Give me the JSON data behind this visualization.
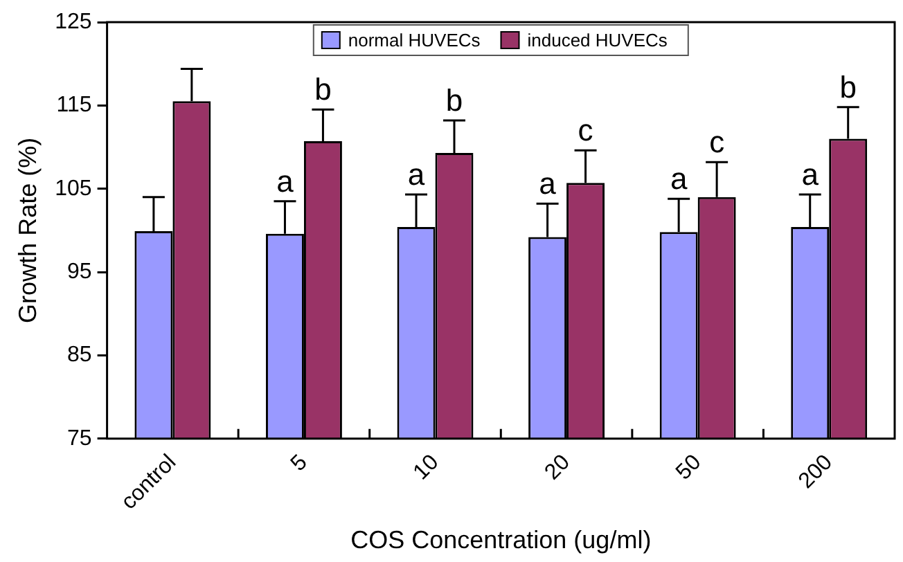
{
  "chart_data": {
    "type": "bar",
    "xlabel": "COS Concentration (ug/ml)",
    "ylabel": "Growth Rate (%)",
    "categories": [
      "control",
      "5",
      "10",
      "20",
      "50",
      "200"
    ],
    "series": [
      {
        "name": "normal HUVECs",
        "color": "#9999ff",
        "values": [
          99.9,
          99.6,
          100.4,
          99.2,
          99.8,
          100.4
        ],
        "errors": [
          [
            99.9,
            104.0
          ],
          [
            99.6,
            103.5
          ],
          [
            100.4,
            104.3
          ],
          [
            99.2,
            103.2
          ],
          [
            99.8,
            103.8
          ],
          [
            100.4,
            104.3
          ]
        ]
      },
      {
        "name": "induced HUVECs",
        "color": "#993366",
        "values": [
          115.5,
          110.7,
          109.3,
          105.7,
          104.0,
          111.0
        ],
        "errors": [
          [
            115.5,
            119.4
          ],
          [
            110.7,
            114.5
          ],
          [
            109.3,
            113.2
          ],
          [
            105.7,
            109.6
          ],
          [
            104.0,
            108.2
          ],
          [
            111.0,
            114.8
          ]
        ]
      }
    ],
    "ylim": [
      75,
      125
    ],
    "yticks": [
      75,
      85,
      95,
      105,
      115,
      125
    ],
    "grid": false,
    "legend": "top",
    "annotations": [
      {
        "text": "a",
        "x": "5",
        "y": 99.6
      },
      {
        "text": "b",
        "x": "5",
        "y": 110.7
      },
      {
        "text": "a",
        "x": "10",
        "y": 100.4
      },
      {
        "text": "b",
        "x": "10",
        "y": 109.3
      },
      {
        "text": "a",
        "x": "20",
        "y": 99.2
      },
      {
        "text": "c",
        "x": "20",
        "y": 105.7
      },
      {
        "text": "a",
        "x": "50",
        "y": 99.8
      },
      {
        "text": "c",
        "x": "50",
        "y": 104.0
      },
      {
        "text": "a",
        "x": "200",
        "y": 100.4
      },
      {
        "text": "b",
        "x": "200",
        "y": 111.0
      }
    ]
  }
}
